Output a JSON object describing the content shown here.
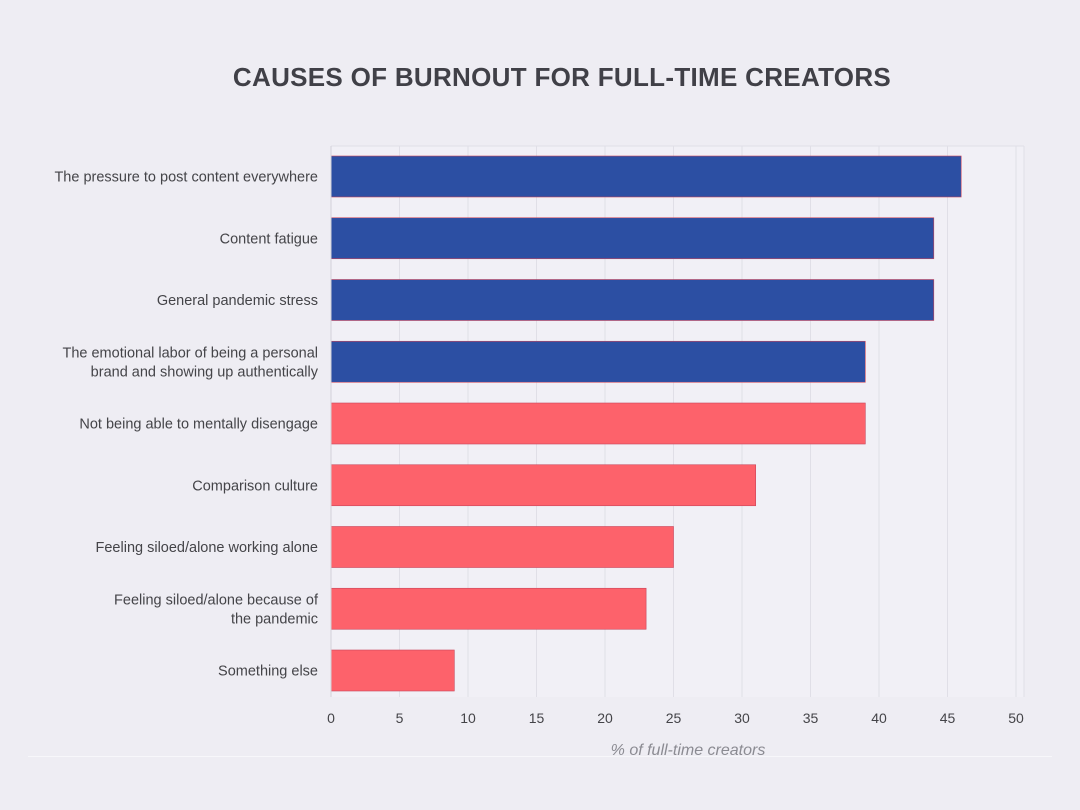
{
  "chart_data": {
    "type": "bar",
    "orientation": "horizontal",
    "title": "CAUSES OF BURNOUT FOR FULL-TIME CREATORS",
    "xlabel": "% of full-time creators",
    "ylabel": "",
    "xlim": [
      0,
      50
    ],
    "xticks": [
      0,
      5,
      10,
      15,
      20,
      25,
      30,
      35,
      40,
      45,
      50
    ],
    "grid": true,
    "categories": [
      [
        "The pressure to post content everywhere"
      ],
      [
        "Content fatigue"
      ],
      [
        "General pandemic stress"
      ],
      [
        "The emotional labor of being a personal",
        "brand and showing up authentically"
      ],
      [
        "Not being able to mentally disengage"
      ],
      [
        "Comparison culture"
      ],
      [
        "Feeling siloed/alone working alone"
      ],
      [
        "Feeling siloed/alone because of",
        "the pandemic"
      ],
      [
        "Something else"
      ]
    ],
    "values": [
      46,
      44,
      44,
      39,
      39,
      31,
      25,
      23,
      9
    ],
    "bar_colors": [
      "#2c4fa3",
      "#2c4fa3",
      "#2c4fa3",
      "#2c4fa3",
      "#fd626b",
      "#fd626b",
      "#fd626b",
      "#fd626b",
      "#fd626b"
    ]
  },
  "colors": {
    "background": "#eeedf3",
    "plot_background": "#f1f0f6",
    "grid": "#e0dfe7",
    "blue_bars": "#2c4fa3",
    "red_bars": "#fd626b",
    "label_text": "#444448",
    "axis_title": "#8b8b92"
  }
}
